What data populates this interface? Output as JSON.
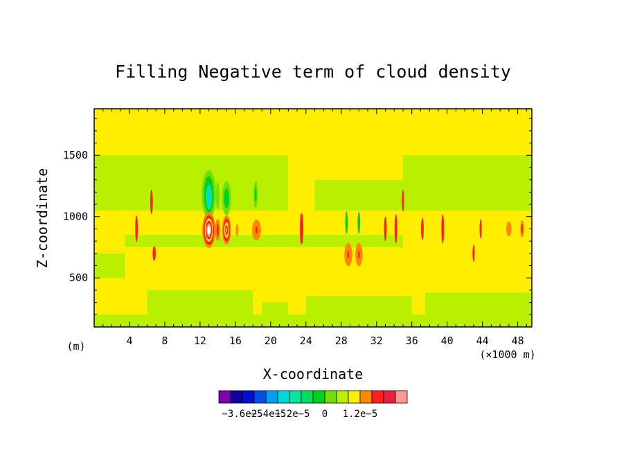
{
  "chart_data": {
    "type": "heatmap",
    "title": "Filling Negative term of cloud density",
    "xlabel": "X-coordinate",
    "ylabel": "Z-coordinate",
    "x_unit_label": "(m)",
    "x_scale_label": "(×1000 m)",
    "xlim": [
      0,
      49.6
    ],
    "ylim": [
      100,
      1880
    ],
    "x_ticks": [
      {
        "value": 4,
        "label": "4"
      },
      {
        "value": 8,
        "label": "8"
      },
      {
        "value": 12,
        "label": "12"
      },
      {
        "value": 16,
        "label": "16"
      },
      {
        "value": 20,
        "label": "20"
      },
      {
        "value": 24,
        "label": "24"
      },
      {
        "value": 28,
        "label": "28"
      },
      {
        "value": 32,
        "label": "32"
      },
      {
        "value": 36,
        "label": "36"
      },
      {
        "value": 40,
        "label": "40"
      },
      {
        "value": 44,
        "label": "44"
      },
      {
        "value": 48,
        "label": "48"
      }
    ],
    "y_ticks": [
      {
        "value": 500,
        "label": "500"
      },
      {
        "value": 1000,
        "label": "1000"
      },
      {
        "value": 1500,
        "label": "1500"
      }
    ],
    "background_color": "#ffee00",
    "colorbar": {
      "colors": [
        "#7a00b0",
        "#1000a0",
        "#0010d0",
        "#0050e8",
        "#00a0f0",
        "#00d8d8",
        "#00e8a0",
        "#00e060",
        "#00d020",
        "#70e000",
        "#b8f000",
        "#ffee00",
        "#ff8800",
        "#ff2020",
        "#e82040",
        "#ff9898"
      ],
      "tick_labels": [
        "−3.6e−5",
        "−2.4e−5",
        "−1.2e−5",
        "0",
        "1.2e−5"
      ]
    },
    "regions": [
      {
        "type": "rect",
        "x0": 0,
        "x1": 3.5,
        "z0": 1050,
        "z1": 1500,
        "color": "#b8f000"
      },
      {
        "type": "rect",
        "x0": 3.5,
        "x1": 19.5,
        "z0": 1050,
        "z1": 1500,
        "color": "#b8f000"
      },
      {
        "type": "rect",
        "x0": 19.5,
        "x1": 22,
        "z0": 1050,
        "z1": 1500,
        "color": "#b8f000"
      },
      {
        "type": "rect",
        "x0": 25,
        "x1": 35,
        "z0": 1050,
        "z1": 1300,
        "color": "#b8f000"
      },
      {
        "type": "rect",
        "x0": 35,
        "x1": 49.6,
        "z0": 1050,
        "z1": 1500,
        "color": "#b8f000"
      },
      {
        "type": "rect",
        "x0": 3.5,
        "x1": 35,
        "z0": 750,
        "z1": 850,
        "color": "#b8f000"
      },
      {
        "type": "rect",
        "x0": 0,
        "x1": 3.5,
        "z0": 500,
        "z1": 700,
        "color": "#b8f000"
      },
      {
        "type": "rect",
        "x0": 0,
        "x1": 49.6,
        "z0": 100,
        "z1": 200,
        "color": "#b8f000"
      },
      {
        "type": "rect",
        "x0": 6,
        "x1": 18,
        "z0": 100,
        "z1": 400,
        "color": "#b8f000"
      },
      {
        "type": "rect",
        "x0": 19,
        "x1": 22,
        "z0": 100,
        "z1": 300,
        "color": "#b8f000"
      },
      {
        "type": "rect",
        "x0": 24,
        "x1": 36,
        "z0": 100,
        "z1": 350,
        "color": "#b8f000"
      },
      {
        "type": "rect",
        "x0": 37.5,
        "x1": 49.6,
        "z0": 100,
        "z1": 380,
        "color": "#b8f000"
      },
      {
        "type": "blob",
        "x": 13.0,
        "z": 1180,
        "rx": 0.8,
        "rz": 200,
        "color": "#70e000"
      },
      {
        "type": "blob",
        "x": 13.0,
        "z": 1180,
        "rx": 0.55,
        "rz": 150,
        "color": "#00d020"
      },
      {
        "type": "blob",
        "x": 13.0,
        "z": 1160,
        "rx": 0.35,
        "rz": 100,
        "color": "#00e8a0"
      },
      {
        "type": "blob",
        "x": 13.0,
        "z": 1150,
        "rx": 0.18,
        "rz": 50,
        "color": "#00d8d8"
      },
      {
        "type": "blob",
        "x": 15.0,
        "z": 1150,
        "rx": 0.5,
        "rz": 140,
        "color": "#70e000"
      },
      {
        "type": "blob",
        "x": 15.0,
        "z": 1150,
        "rx": 0.3,
        "rz": 80,
        "color": "#00d020"
      },
      {
        "type": "blob",
        "x": 14.0,
        "z": 1170,
        "rx": 0.2,
        "rz": 110,
        "color": "#70e000"
      },
      {
        "type": "blob",
        "x": 18.3,
        "z": 1180,
        "rx": 0.25,
        "rz": 110,
        "color": "#70e000"
      },
      {
        "type": "blob",
        "x": 18.3,
        "z": 1180,
        "rx": 0.1,
        "rz": 60,
        "color": "#00d020"
      },
      {
        "type": "blob",
        "x": 28.6,
        "z": 950,
        "rx": 0.15,
        "rz": 90,
        "color": "#00d020"
      },
      {
        "type": "blob",
        "x": 30.0,
        "z": 950,
        "rx": 0.15,
        "rz": 90,
        "color": "#00d020"
      },
      {
        "type": "blob",
        "x": 13.0,
        "z": 890,
        "rx": 0.75,
        "rz": 145,
        "color": "#ff8800"
      },
      {
        "type": "blob",
        "x": 13.0,
        "z": 890,
        "rx": 0.6,
        "rz": 120,
        "color": "#ff2020"
      },
      {
        "type": "blob",
        "x": 13.0,
        "z": 890,
        "rx": 0.47,
        "rz": 95,
        "color": "#ffee00"
      },
      {
        "type": "blob",
        "x": 13.0,
        "z": 890,
        "rx": 0.38,
        "rz": 75,
        "color": "#ff2020"
      },
      {
        "type": "blob",
        "x": 13.0,
        "z": 890,
        "rx": 0.27,
        "rz": 55,
        "color": "#ff9898"
      },
      {
        "type": "blob",
        "x": 13.0,
        "z": 890,
        "rx": 0.17,
        "rz": 35,
        "color": "#ffffff"
      },
      {
        "type": "blob",
        "x": 15.0,
        "z": 890,
        "rx": 0.5,
        "rz": 120,
        "color": "#ff8800"
      },
      {
        "type": "blob",
        "x": 15.0,
        "z": 890,
        "rx": 0.38,
        "rz": 95,
        "color": "#ff2020"
      },
      {
        "type": "blob",
        "x": 15.0,
        "z": 890,
        "rx": 0.26,
        "rz": 65,
        "color": "#ffee00"
      },
      {
        "type": "blob",
        "x": 15.0,
        "z": 890,
        "rx": 0.16,
        "rz": 40,
        "color": "#ff2020"
      },
      {
        "type": "blob",
        "x": 15.0,
        "z": 890,
        "rx": 0.08,
        "rz": 20,
        "color": "#ff9898"
      },
      {
        "type": "blob",
        "x": 14.0,
        "z": 890,
        "rx": 0.3,
        "rz": 90,
        "color": "#ff8800"
      },
      {
        "type": "blob",
        "x": 14.0,
        "z": 890,
        "rx": 0.12,
        "rz": 50,
        "color": "#ff2020"
      },
      {
        "type": "blob",
        "x": 16.2,
        "z": 890,
        "rx": 0.15,
        "rz": 50,
        "color": "#ff8800"
      },
      {
        "type": "blob",
        "x": 18.4,
        "z": 890,
        "rx": 0.5,
        "rz": 85,
        "color": "#ff8800"
      },
      {
        "type": "blob",
        "x": 18.4,
        "z": 890,
        "rx": 0.12,
        "rz": 30,
        "color": "#ff2020"
      },
      {
        "type": "blob",
        "x": 28.8,
        "z": 690,
        "rx": 0.45,
        "rz": 95,
        "color": "#ff8800"
      },
      {
        "type": "blob",
        "x": 28.8,
        "z": 690,
        "rx": 0.1,
        "rz": 30,
        "color": "#ff2020"
      },
      {
        "type": "blob",
        "x": 30.0,
        "z": 690,
        "rx": 0.4,
        "rz": 95,
        "color": "#ff8800"
      },
      {
        "type": "blob",
        "x": 30.0,
        "z": 690,
        "rx": 0.1,
        "rz": 30,
        "color": "#ff2020"
      },
      {
        "type": "blob",
        "x": 47.0,
        "z": 900,
        "rx": 0.3,
        "rz": 60,
        "color": "#ff8800"
      },
      {
        "type": "blob",
        "x": 48.5,
        "z": 900,
        "rx": 0.2,
        "rz": 70,
        "color": "#ff8800"
      },
      {
        "type": "blob",
        "x": 48.5,
        "z": 900,
        "rx": 0.1,
        "rz": 40,
        "color": "#ff2020"
      },
      {
        "type": "blob",
        "x": 4.8,
        "z": 900,
        "rx": 0.15,
        "rz": 110,
        "color": "#ff2020"
      },
      {
        "type": "blob",
        "x": 6.5,
        "z": 1120,
        "rx": 0.15,
        "rz": 100,
        "color": "#ff2020"
      },
      {
        "type": "blob",
        "x": 6.8,
        "z": 700,
        "rx": 0.18,
        "rz": 60,
        "color": "#ff2020"
      },
      {
        "type": "blob",
        "x": 23.5,
        "z": 900,
        "rx": 0.2,
        "rz": 130,
        "color": "#ff2020"
      },
      {
        "type": "blob",
        "x": 33.0,
        "z": 900,
        "rx": 0.15,
        "rz": 100,
        "color": "#ff2020"
      },
      {
        "type": "blob",
        "x": 34.2,
        "z": 900,
        "rx": 0.15,
        "rz": 120,
        "color": "#ff2020"
      },
      {
        "type": "blob",
        "x": 35.0,
        "z": 1130,
        "rx": 0.12,
        "rz": 90,
        "color": "#ff2020"
      },
      {
        "type": "blob",
        "x": 37.2,
        "z": 900,
        "rx": 0.15,
        "rz": 90,
        "color": "#ff2020"
      },
      {
        "type": "blob",
        "x": 39.5,
        "z": 900,
        "rx": 0.15,
        "rz": 120,
        "color": "#ff2020"
      },
      {
        "type": "blob",
        "x": 43.0,
        "z": 700,
        "rx": 0.12,
        "rz": 70,
        "color": "#ff2020"
      },
      {
        "type": "blob",
        "x": 43.8,
        "z": 900,
        "rx": 0.12,
        "rz": 80,
        "color": "#ff2020"
      }
    ]
  }
}
